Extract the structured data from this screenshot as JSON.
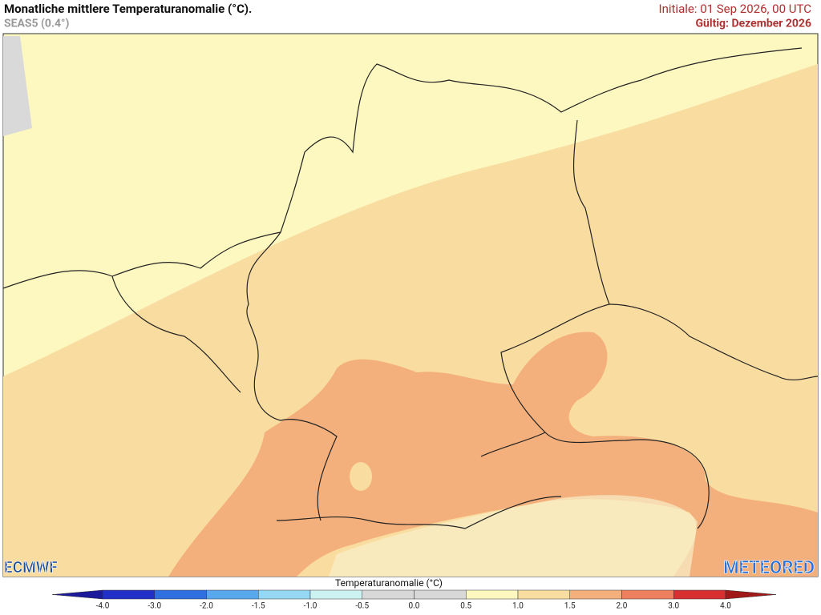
{
  "header": {
    "title": "Monatliche mittlere Temperaturanomalie (°C).",
    "subtitle": "SEAS5 (0.4°)",
    "initial": "Initiale: 01 Sep 2026, 00 UTC",
    "valid": "Gültig: Dezember 2026"
  },
  "logos": {
    "left": "ECMWF",
    "right": "METEORED"
  },
  "colorbar": {
    "title": "Temperaturanomalie (°C)",
    "ticks": [
      {
        "value": -4,
        "label": "-4.0"
      },
      {
        "value": -3,
        "label": "-3.0"
      },
      {
        "value": -2,
        "label": "-2.0"
      },
      -1.5,
      {
        "value": -1,
        "label": "-1.0"
      },
      -0.5,
      {
        "value": 0,
        "label": "0.0"
      },
      0.5,
      {
        "value": 1,
        "label": "1.0"
      },
      1.5,
      {
        "value": 2,
        "label": "2.0"
      },
      {
        "value": 3,
        "label": "3.0"
      },
      {
        "value": 4,
        "label": "4.0"
      }
    ],
    "colors": [
      "#1a1a9a",
      "#2030c8",
      "#2f6fe0",
      "#58a8ee",
      "#96d8f4",
      "#cdf2f2",
      "#d8d8d8",
      "#d8d8d8",
      "#fdf8c0",
      "#f9dca0",
      "#f4b07c",
      "#ee8060",
      "#d83030",
      "#a01818"
    ]
  }
}
